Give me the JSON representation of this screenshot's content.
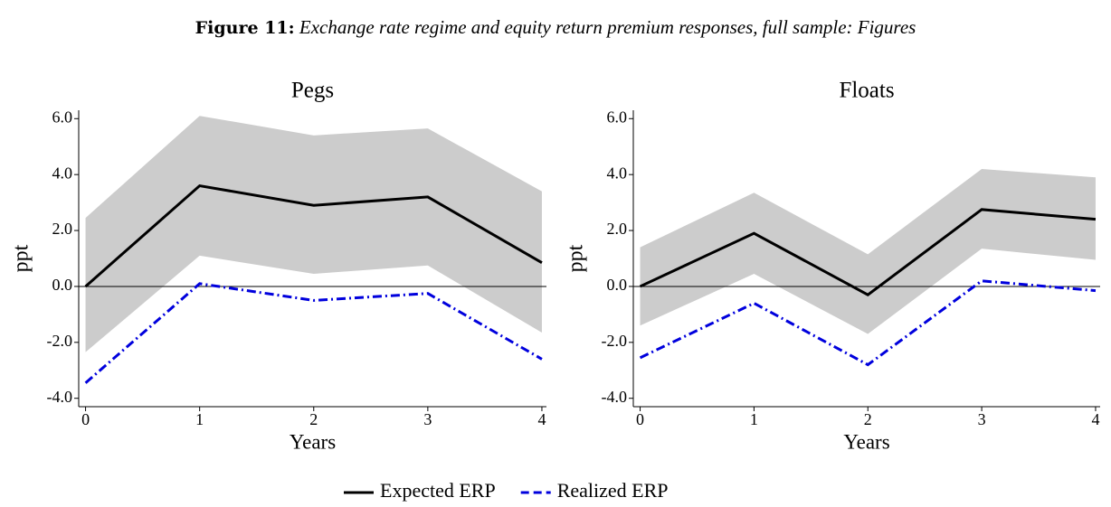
{
  "figure_label": "Figure 11:",
  "caption": "Exchange rate regime and equity return premium responses, full sample: Figures",
  "chart_data": [
    {
      "type": "line",
      "title": "Pegs",
      "x_label": "Years",
      "y_label": "ppt",
      "x": [
        0,
        1,
        2,
        3,
        4
      ],
      "xlim": [
        -0.06,
        4.04
      ],
      "xticks": [
        0,
        1,
        2,
        3,
        4
      ],
      "ylim": [
        -4.3,
        6.3
      ],
      "yticks": [
        {
          "value": -4,
          "label": "-4.0"
        },
        {
          "value": -2,
          "label": "-2.0"
        },
        {
          "value": 0,
          "label": "0.0"
        },
        {
          "value": 2,
          "label": "2.0"
        },
        {
          "value": 4,
          "label": "4.0"
        },
        {
          "value": 6,
          "label": "6.0"
        }
      ],
      "zero_line": true,
      "band": {
        "color": "#cccccc",
        "lower": [
          -2.35,
          1.1,
          0.45,
          0.75,
          -1.65
        ],
        "upper": [
          2.45,
          6.1,
          5.4,
          5.65,
          3.4
        ]
      },
      "series": [
        {
          "name": "Expected ERP",
          "color": "#000000",
          "line_style": "solid",
          "values": [
            0,
            3.6,
            2.9,
            3.2,
            0.85
          ]
        },
        {
          "name": "Realized ERP",
          "color": "#0000dd",
          "line_style": "dashdot",
          "values": [
            -3.45,
            0.1,
            -0.5,
            -0.25,
            -2.6
          ]
        }
      ]
    },
    {
      "type": "line",
      "title": "Floats",
      "x_label": "Years",
      "y_label": "ppt",
      "x": [
        0,
        1,
        2,
        3,
        4
      ],
      "xlim": [
        -0.06,
        4.04
      ],
      "xticks": [
        0,
        1,
        2,
        3,
        4
      ],
      "ylim": [
        -4.3,
        6.3
      ],
      "yticks": [
        {
          "value": -4,
          "label": "-4.0"
        },
        {
          "value": -2,
          "label": "-2.0"
        },
        {
          "value": 0,
          "label": "0.0"
        },
        {
          "value": 2,
          "label": "2.0"
        },
        {
          "value": 4,
          "label": "4.0"
        },
        {
          "value": 6,
          "label": "6.0"
        }
      ],
      "zero_line": true,
      "band": {
        "color": "#cccccc",
        "lower": [
          -1.4,
          0.45,
          -1.7,
          1.35,
          0.95
        ],
        "upper": [
          1.4,
          3.35,
          1.15,
          4.2,
          3.9
        ]
      },
      "series": [
        {
          "color": "#000000",
          "line_style": "solid",
          "values": [
            0,
            1.9,
            -0.3,
            2.75,
            2.4
          ]
        },
        {
          "color": "#0000dd",
          "line_style": "dashdot",
          "values": [
            -2.55,
            -0.6,
            -2.8,
            0.2,
            -0.15
          ]
        }
      ]
    }
  ]
}
